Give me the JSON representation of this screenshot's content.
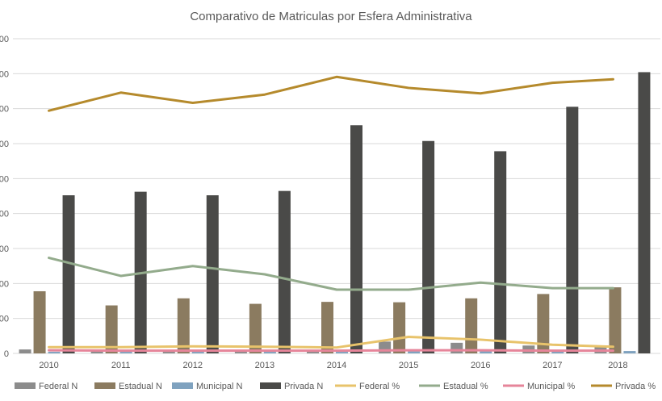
{
  "chart_data": {
    "type": "bar",
    "title": "Comparativo de Matriculas por Esfera Administrativa",
    "categories": [
      "2010",
      "2011",
      "2012",
      "2013",
      "2014",
      "2015",
      "2016",
      "2017",
      "2018"
    ],
    "y_ticks": [
      "00",
      "00",
      "00",
      "00",
      "00",
      "00",
      "00",
      "00",
      "00",
      "0"
    ],
    "ylim": [
      0,
      800
    ],
    "grid": true,
    "legend_position": "bottom",
    "bar_series": [
      {
        "name": "Federal N",
        "color": "#8c8c8c",
        "values": [
          10,
          8,
          8,
          7,
          8,
          30,
          27,
          20,
          18
        ]
      },
      {
        "name": "Estadual N",
        "color": "#8b7b60",
        "values": [
          158,
          122,
          140,
          126,
          131,
          130,
          140,
          151,
          168
        ]
      },
      {
        "name": "Municipal N",
        "color": "#7fa2bf",
        "values": [
          4,
          4,
          4,
          4,
          4,
          5,
          5,
          6,
          6
        ]
      },
      {
        "name": "Privada N",
        "color": "#4a4a48",
        "values": [
          402,
          411,
          402,
          413,
          580,
          540,
          514,
          627,
          715
        ]
      }
    ],
    "line_series": [
      {
        "name": "Federal %",
        "color": "#e8c36b",
        "values": [
          16,
          16,
          18,
          17,
          15,
          42,
          35,
          22,
          17
        ]
      },
      {
        "name": "Estadual %",
        "color": "#93ab8c",
        "values": [
          243,
          197,
          222,
          201,
          162,
          162,
          180,
          166,
          166
        ]
      },
      {
        "name": "Municipal %",
        "color": "#e6859a",
        "values": [
          8,
          7,
          7,
          7,
          7,
          8,
          8,
          7,
          7
        ]
      },
      {
        "name": "Privada %",
        "color": "#b58a2c",
        "values": [
          617,
          663,
          637,
          658,
          703,
          675,
          661,
          688,
          697
        ]
      }
    ]
  }
}
